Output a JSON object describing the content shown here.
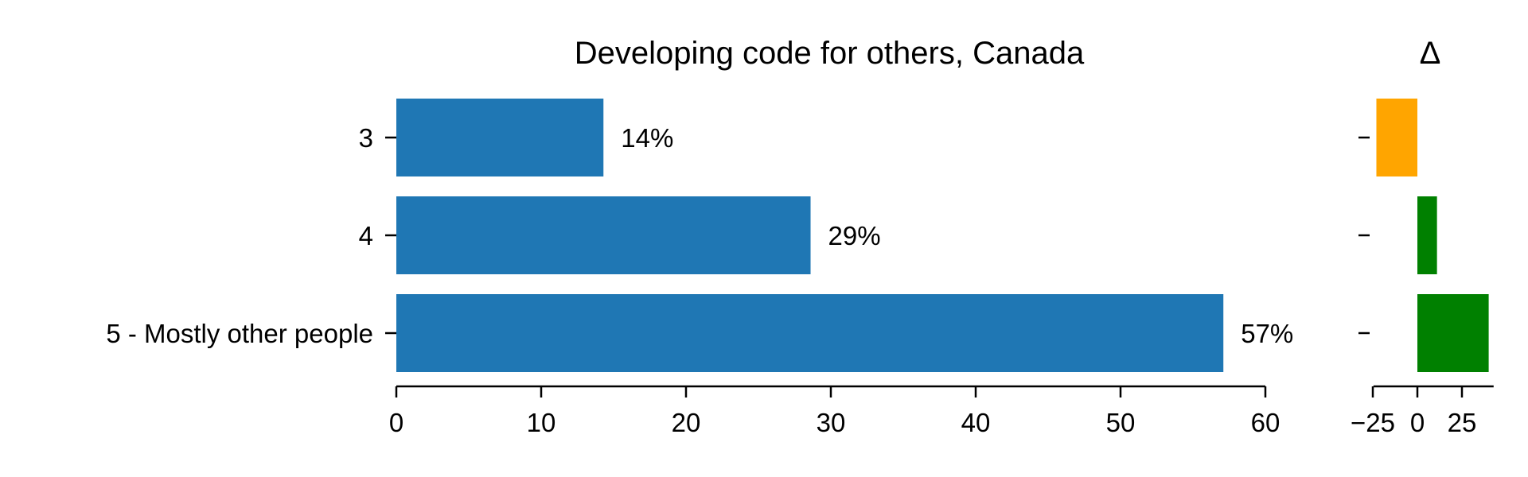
{
  "chart_data": [
    {
      "type": "bar",
      "orientation": "horizontal",
      "title": "Developing code for others, Canada",
      "categories": [
        "3",
        "4",
        "5 - Mostly other people"
      ],
      "values": [
        14.3,
        28.6,
        57.1
      ],
      "data_labels": [
        "14%",
        "29%",
        "57%"
      ],
      "xlim": [
        0,
        60
      ],
      "xticks": [
        0,
        10,
        20,
        30,
        40,
        50,
        60
      ],
      "xlabel": "",
      "ylabel": "",
      "grid": false,
      "color": "#1f77b4"
    },
    {
      "type": "bar",
      "orientation": "horizontal",
      "title": "Δ",
      "categories": [
        "3",
        "4",
        "5 - Mostly other people"
      ],
      "values": [
        -23,
        11,
        40
      ],
      "xlim": [
        -30,
        45
      ],
      "xticks": [
        -25,
        0,
        25
      ],
      "xtick_labels": [
        "−25",
        "0",
        "25"
      ],
      "xlabel": "",
      "ylabel": "",
      "grid": false,
      "colors": {
        "negative": "#ffa500",
        "positive": "#008000"
      }
    }
  ]
}
